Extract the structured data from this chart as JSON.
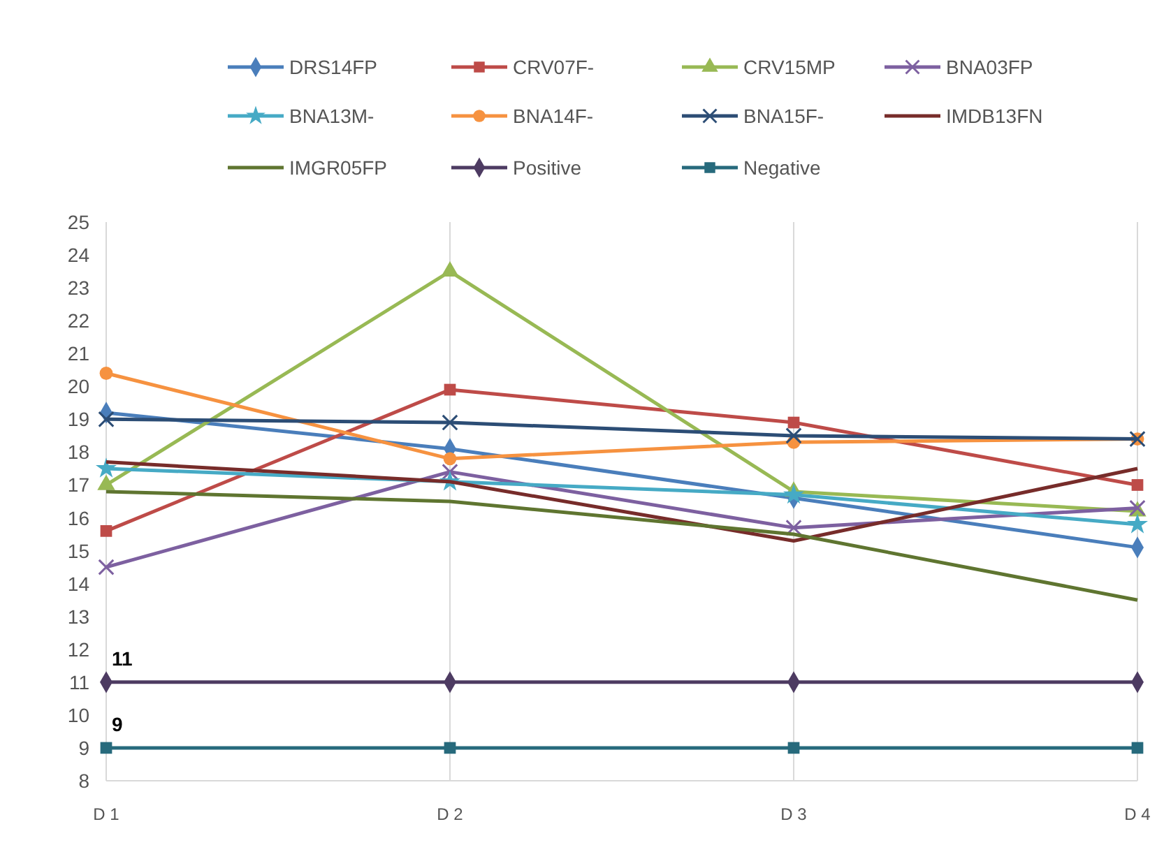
{
  "chart_data": {
    "type": "line",
    "categories": [
      "D 1",
      "D 2",
      "D 3",
      "D 4"
    ],
    "ylim": [
      8,
      25
    ],
    "yticks": [
      8,
      9,
      10,
      11,
      12,
      13,
      14,
      15,
      16,
      17,
      18,
      19,
      20,
      21,
      22,
      23,
      24,
      25
    ],
    "grid": "x",
    "legend": "top",
    "series": [
      {
        "name": "DRS14FP",
        "color": "#4a7ebb",
        "marker": "diamond",
        "values": [
          19.2,
          18.1,
          16.6,
          15.1
        ]
      },
      {
        "name": "CRV07F-",
        "color": "#be4b48",
        "marker": "square",
        "values": [
          15.6,
          19.9,
          18.9,
          17.0
        ]
      },
      {
        "name": "CRV15MP",
        "color": "#98b954",
        "marker": "triangle",
        "values": [
          17.0,
          23.5,
          16.8,
          16.2
        ]
      },
      {
        "name": "BNA03FP",
        "color": "#7d60a0",
        "marker": "cross",
        "values": [
          14.5,
          17.4,
          15.7,
          16.3
        ]
      },
      {
        "name": "BNA13M-",
        "color": "#46aac5",
        "marker": "star",
        "values": [
          17.5,
          17.1,
          16.7,
          15.8
        ]
      },
      {
        "name": "BNA14F-",
        "color": "#f69240",
        "marker": "circle",
        "values": [
          20.4,
          17.8,
          18.3,
          18.4
        ]
      },
      {
        "name": "BNA15F-",
        "color": "#2c4d75",
        "marker": "cross",
        "values": [
          19.0,
          18.9,
          18.5,
          18.4
        ]
      },
      {
        "name": "IMDB13FN",
        "color": "#772c2a",
        "marker": "none",
        "values": [
          17.7,
          17.1,
          15.3,
          17.5
        ]
      },
      {
        "name": "IMGR05FP",
        "color": "#5f7530",
        "marker": "none",
        "values": [
          16.8,
          16.5,
          15.5,
          13.5
        ]
      },
      {
        "name": "Positive",
        "color": "#4d3b62",
        "marker": "diamond",
        "values": [
          11,
          11,
          11,
          11
        ],
        "value_labels": [
          "11",
          null,
          null,
          null
        ]
      },
      {
        "name": "Negative",
        "color": "#276a7c",
        "marker": "square",
        "values": [
          9,
          9,
          9,
          9
        ],
        "value_labels": [
          "9",
          null,
          null,
          null
        ]
      }
    ]
  }
}
